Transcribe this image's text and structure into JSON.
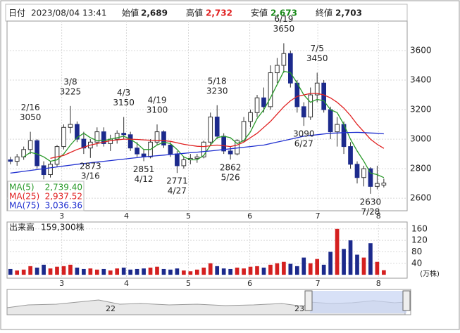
{
  "header": {
    "date_label": "日付",
    "datetime": "2023/08/04 13:41",
    "open_label": "始値",
    "open": "2,689",
    "high_label": "高値",
    "high": "2,732",
    "low_label": "安値",
    "low": "2,673",
    "close_label": "終値",
    "close": "2,703"
  },
  "chart_data": {
    "type": "candlestick",
    "grid": true,
    "up_color": "#ffffff",
    "down_color": "#1c2a8c",
    "up_volume_color": "#d42020",
    "down_volume_color": "#1c2a8c",
    "xlim": [
      -0.5,
      59.5
    ],
    "xticks": [
      {
        "value": 7.7,
        "label": "3"
      },
      {
        "value": 17.4,
        "label": "4"
      },
      {
        "value": 26.7,
        "label": "5"
      },
      {
        "value": 35.9,
        "label": "6"
      },
      {
        "value": 46.1,
        "label": "7"
      },
      {
        "value": 55.2,
        "label": "8"
      }
    ],
    "ylim": [
      2515,
      3800
    ],
    "yticks": [
      2600,
      2800,
      3000,
      3200,
      3400,
      3600
    ],
    "candles": [
      [
        2860,
        2880,
        2830,
        2850
      ],
      [
        2850,
        2900,
        2820,
        2880
      ],
      [
        2880,
        2950,
        2860,
        2930
      ],
      [
        2930,
        3050,
        2900,
        2990
      ],
      [
        2990,
        3000,
        2800,
        2820
      ],
      [
        2820,
        2850,
        2728,
        2760
      ],
      [
        2760,
        2850,
        2740,
        2830
      ],
      [
        2830,
        2960,
        2810,
        2950
      ],
      [
        2950,
        3100,
        2930,
        3080
      ],
      [
        3080,
        3225,
        3040,
        3100
      ],
      [
        3100,
        3120,
        2980,
        3000
      ],
      [
        3000,
        3050,
        2900,
        2940
      ],
      [
        2940,
        3000,
        2873,
        2980
      ],
      [
        2980,
        3080,
        2950,
        3050
      ],
      [
        3050,
        3080,
        2950,
        2970
      ],
      [
        2970,
        3030,
        2920,
        3000
      ],
      [
        3000,
        3060,
        2970,
        3040
      ],
      [
        3040,
        3150,
        3000,
        3030
      ],
      [
        3030,
        3050,
        2920,
        2940
      ],
      [
        2940,
        2980,
        2880,
        2900
      ],
      [
        2900,
        2930,
        2851,
        2880
      ],
      [
        2880,
        3000,
        2870,
        2980
      ],
      [
        2980,
        3100,
        2960,
        3050
      ],
      [
        3050,
        3060,
        2940,
        2960
      ],
      [
        2960,
        2980,
        2880,
        2900
      ],
      [
        2900,
        2920,
        2771,
        2820
      ],
      [
        2820,
        2880,
        2800,
        2860
      ],
      [
        2860,
        2900,
        2830,
        2870
      ],
      [
        2870,
        2900,
        2840,
        2880
      ],
      [
        2880,
        2990,
        2870,
        2980
      ],
      [
        2980,
        3180,
        2960,
        3150
      ],
      [
        3150,
        3230,
        3000,
        3020
      ],
      [
        3020,
        3040,
        2900,
        2920
      ],
      [
        2920,
        2950,
        2862,
        2900
      ],
      [
        2900,
        3000,
        2890,
        2990
      ],
      [
        2990,
        3150,
        2980,
        3120
      ],
      [
        3120,
        3200,
        3080,
        3180
      ],
      [
        3180,
        3300,
        3150,
        3280
      ],
      [
        3280,
        3350,
        3180,
        3220
      ],
      [
        3220,
        3500,
        3200,
        3450
      ],
      [
        3450,
        3550,
        3380,
        3500
      ],
      [
        3500,
        3650,
        3450,
        3580
      ],
      [
        3580,
        3600,
        3350,
        3380
      ],
      [
        3380,
        3400,
        3180,
        3220
      ],
      [
        3220,
        3250,
        3090,
        3150
      ],
      [
        3150,
        3350,
        3130,
        3300
      ],
      [
        3300,
        3450,
        3250,
        3380
      ],
      [
        3380,
        3400,
        3180,
        3200
      ],
      [
        3200,
        3220,
        3000,
        3050
      ],
      [
        3050,
        3150,
        2950,
        3100
      ],
      [
        3100,
        3120,
        2900,
        2950
      ],
      [
        2950,
        2980,
        2800,
        2830
      ],
      [
        2830,
        2850,
        2700,
        2740
      ],
      [
        2740,
        2820,
        2680,
        2800
      ],
      [
        2800,
        2810,
        2630,
        2680
      ],
      [
        2680,
        2820,
        2660,
        2700
      ],
      [
        2689,
        2732,
        2673,
        2703
      ]
    ],
    "series": [
      {
        "name": "MA(5)",
        "color": "#2a9a2a",
        "legend_value": {
          "value": 2739.4,
          "label": "2,739.40"
        },
        "values": [
          null,
          null,
          2880,
          2910,
          2900,
          2880,
          2850,
          2860,
          2900,
          2960,
          3010,
          3040,
          3010,
          2990,
          2990,
          3000,
          3010,
          3020,
          3000,
          2970,
          2930,
          2930,
          2960,
          2980,
          2970,
          2930,
          2880,
          2860,
          2860,
          2890,
          2960,
          3010,
          3020,
          3010,
          2970,
          2990,
          3050,
          3140,
          3200,
          3280,
          3370,
          3460,
          3450,
          3380,
          3300,
          3250,
          3270,
          3260,
          3200,
          3180,
          3100,
          3000,
          2920,
          2850,
          2770,
          2760,
          2739.4
        ]
      },
      {
        "name": "MA(25)",
        "color": "#e02020",
        "legend_value": {
          "value": 2937.52,
          "label": "2,937.52"
        },
        "values": [
          null,
          null,
          null,
          null,
          null,
          null,
          2870,
          2880,
          2890,
          2910,
          2930,
          2945,
          2960,
          2970,
          2980,
          2990,
          2995,
          3000,
          3000,
          2998,
          2995,
          2993,
          2992,
          2990,
          2985,
          2975,
          2965,
          2958,
          2952,
          2950,
          2955,
          2960,
          2955,
          2950,
          2960,
          2980,
          3010,
          3040,
          3080,
          3120,
          3170,
          3220,
          3260,
          3290,
          3300,
          3310,
          3310,
          3300,
          3280,
          3250,
          3210,
          3160,
          3100,
          3050,
          3000,
          2965,
          2937.52
        ]
      },
      {
        "name": "MA(75)",
        "color": "#2030d0",
        "legend_value": {
          "value": 3036.36,
          "label": "3,036.36"
        },
        "values": [
          2770,
          2776,
          2782,
          2788,
          2794,
          2800,
          2806,
          2812,
          2818,
          2824,
          2830,
          2835,
          2840,
          2845,
          2850,
          2855,
          2860,
          2865,
          2870,
          2875,
          2880,
          2884,
          2888,
          2892,
          2896,
          2900,
          2904,
          2908,
          2912,
          2916,
          2920,
          2925,
          2930,
          2935,
          2940,
          2945,
          2950,
          2955,
          2960,
          2970,
          2980,
          2990,
          3000,
          3010,
          3020,
          3025,
          3030,
          3035,
          3040,
          3042,
          3044,
          3045,
          3046,
          3044,
          3042,
          3040,
          3036.36
        ]
      }
    ],
    "annotations": [
      {
        "x": 3,
        "value": 3050,
        "date": "2/16",
        "position": "above"
      },
      {
        "x": 9,
        "value": 3225,
        "date": "3/8",
        "position": "above"
      },
      {
        "x": 12,
        "value": 2873,
        "date": "3/16",
        "position": "below"
      },
      {
        "x": 17,
        "value": 3150,
        "date": "4/3",
        "position": "above"
      },
      {
        "x": 20,
        "value": 2851,
        "date": "4/12",
        "position": "below"
      },
      {
        "x": 22,
        "value": 3100,
        "date": "4/19",
        "position": "above"
      },
      {
        "x": 25,
        "value": 2771,
        "date": "4/27",
        "position": "below"
      },
      {
        "x": 31,
        "value": 3230,
        "date": "5/18",
        "position": "above"
      },
      {
        "x": 33,
        "value": 2862,
        "date": "5/26",
        "position": "below"
      },
      {
        "x": 41,
        "value": 3650,
        "date": "6/19",
        "position": "above"
      },
      {
        "x": 44,
        "value": 3090,
        "date": "6/27",
        "position": "below"
      },
      {
        "x": 46,
        "value": 3450,
        "date": "7/5",
        "position": "above"
      },
      {
        "x": 54,
        "value": 2630,
        "date": "7/28",
        "position": "below"
      }
    ],
    "volume": {
      "title": "出来高",
      "latest": {
        "value": 159300,
        "label": "159,300株"
      },
      "unit": "(万株)",
      "ylim": [
        -12,
        184
      ],
      "yticks": [
        40,
        80,
        120,
        160
      ],
      "values": [
        20,
        15,
        18,
        30,
        25,
        35,
        22,
        28,
        30,
        35,
        25,
        20,
        22,
        18,
        20,
        15,
        22,
        25,
        18,
        20,
        22,
        25,
        28,
        20,
        18,
        22,
        15,
        12,
        18,
        25,
        40,
        30,
        22,
        20,
        25,
        22,
        28,
        30,
        25,
        35,
        40,
        45,
        38,
        30,
        60,
        40,
        55,
        35,
        80,
        160,
        90,
        120,
        70,
        60,
        110,
        45,
        15.93
      ]
    }
  },
  "navigator": {
    "labels": [
      "22",
      "23"
    ]
  }
}
